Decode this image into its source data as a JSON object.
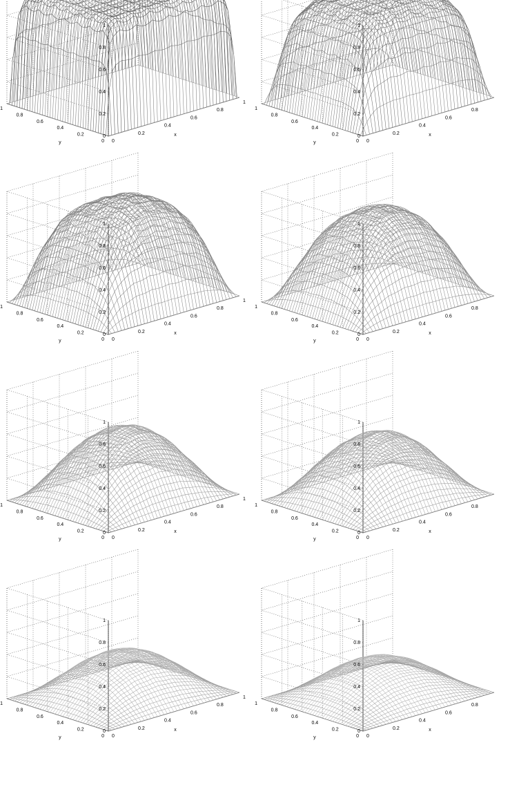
{
  "figure": {
    "rows": 4,
    "cols": 2
  },
  "chart_data": [
    {
      "type": "surface",
      "panel": 1,
      "xlabel": "x",
      "ylabel": "y",
      "zlim": [
        0,
        1
      ],
      "xlim": [
        0,
        1
      ],
      "ylim": [
        0,
        1
      ],
      "zticks": [
        "0",
        "0.2",
        "0.4",
        "0.6",
        "0.8",
        "1"
      ],
      "xticks": [
        "0",
        "0.2",
        "0.4",
        "0.6",
        "0.8",
        "1"
      ],
      "yticks": [
        "0",
        "0.2",
        "0.4",
        "0.6",
        "0.8",
        "1"
      ],
      "grid": true,
      "plateau_height": 1.0,
      "edge_sharpness": 30
    },
    {
      "type": "surface",
      "panel": 2,
      "xlabel": "x",
      "ylabel": "y",
      "zlim": [
        0,
        1
      ],
      "xlim": [
        0,
        1
      ],
      "ylim": [
        0,
        1
      ],
      "zticks": [
        "0",
        "0.2",
        "0.4",
        "0.6",
        "0.8",
        "1"
      ],
      "xticks": [
        "0",
        "0.2",
        "0.4",
        "0.6",
        "0.8"
      ],
      "yticks": [
        "0",
        "0.2",
        "0.4",
        "0.6",
        "0.8",
        "1"
      ],
      "grid": true,
      "plateau_height": 0.95,
      "edge_sharpness": 10
    },
    {
      "type": "surface",
      "panel": 3,
      "xlabel": "x",
      "ylabel": "y",
      "zlim": [
        0,
        1
      ],
      "xlim": [
        0,
        1
      ],
      "ylim": [
        0,
        1
      ],
      "zticks": [
        "0",
        "0.2",
        "0.4",
        "0.6",
        "0.8",
        "1"
      ],
      "xticks": [
        "0",
        "0.2",
        "0.4",
        "0.6",
        "0.8",
        "1"
      ],
      "yticks": [
        "0",
        "0.2",
        "0.4",
        "0.6",
        "0.8",
        "1"
      ],
      "grid": true,
      "plateau_height": 0.92,
      "edge_sharpness": 6
    },
    {
      "type": "surface",
      "panel": 4,
      "xlabel": "x",
      "ylabel": "y",
      "zlim": [
        0,
        1
      ],
      "xlim": [
        0,
        1
      ],
      "ylim": [
        0,
        1
      ],
      "zticks": [
        "0",
        "0.2",
        "0.4",
        "0.6",
        "0.8",
        "1"
      ],
      "xticks": [
        "0",
        "0.2",
        "0.4",
        "0.6",
        "0.8"
      ],
      "yticks": [
        "0",
        "0.2",
        "0.4",
        "0.6",
        "0.8",
        "1"
      ],
      "grid": true,
      "plateau_height": 0.9,
      "edge_sharpness": 4.5
    },
    {
      "type": "surface",
      "panel": 5,
      "xlabel": "x",
      "ylabel": "y",
      "zlim": [
        0,
        1
      ],
      "xlim": [
        0,
        1
      ],
      "ylim": [
        0,
        1
      ],
      "zticks": [
        "0",
        "0.2",
        "0.4",
        "0.6",
        "0.8",
        "1"
      ],
      "xticks": [
        "0",
        "0.2",
        "0.4",
        "0.6",
        "0.8",
        "1"
      ],
      "yticks": [
        "0",
        "0.2",
        "0.4",
        "0.6",
        "0.8",
        "1"
      ],
      "grid": true,
      "plateau_height": 0.88,
      "edge_sharpness": 3.2
    },
    {
      "type": "surface",
      "panel": 6,
      "xlabel": "x",
      "ylabel": "y",
      "zlim": [
        0,
        1
      ],
      "xlim": [
        0,
        1
      ],
      "ylim": [
        0,
        1
      ],
      "zticks": [
        "0",
        "0.2",
        "0.4",
        "0.6",
        "0.8",
        "1"
      ],
      "xticks": [
        "0",
        "0.2",
        "0.4",
        "0.6",
        "0.8"
      ],
      "yticks": [
        "0",
        "0.2",
        "0.4",
        "0.6",
        "0.8",
        "1"
      ],
      "grid": true,
      "plateau_height": 0.87,
      "edge_sharpness": 3.0
    },
    {
      "type": "surface",
      "panel": 7,
      "xlabel": "x",
      "ylabel": "y",
      "zlim": [
        0,
        1
      ],
      "xlim": [
        0,
        1
      ],
      "ylim": [
        0,
        1
      ],
      "zticks": [
        "0",
        "0.2",
        "0.4",
        "0.6",
        "0.8",
        "1"
      ],
      "xticks": [
        "0",
        "0.2",
        "0.4",
        "0.6",
        "0.8",
        "1"
      ],
      "yticks": [
        "0",
        "0.2",
        "0.4",
        "0.6",
        "0.8",
        "1"
      ],
      "grid": true,
      "plateau_height": 0.83,
      "edge_sharpness": 2.4
    },
    {
      "type": "surface",
      "panel": 8,
      "xlabel": "x",
      "ylabel": "y",
      "zlim": [
        0,
        1
      ],
      "xlim": [
        0,
        1
      ],
      "ylim": [
        0,
        1
      ],
      "zticks": [
        "0",
        "0.2",
        "0.4",
        "0.6",
        "0.8",
        "1"
      ],
      "xticks": [
        "0",
        "0.2",
        "0.4",
        "0.6",
        "0.8"
      ],
      "yticks": [
        "0",
        "0.2",
        "0.4",
        "0.6",
        "0.8",
        "1"
      ],
      "grid": true,
      "plateau_height": 0.82,
      "edge_sharpness": 2.2
    }
  ]
}
